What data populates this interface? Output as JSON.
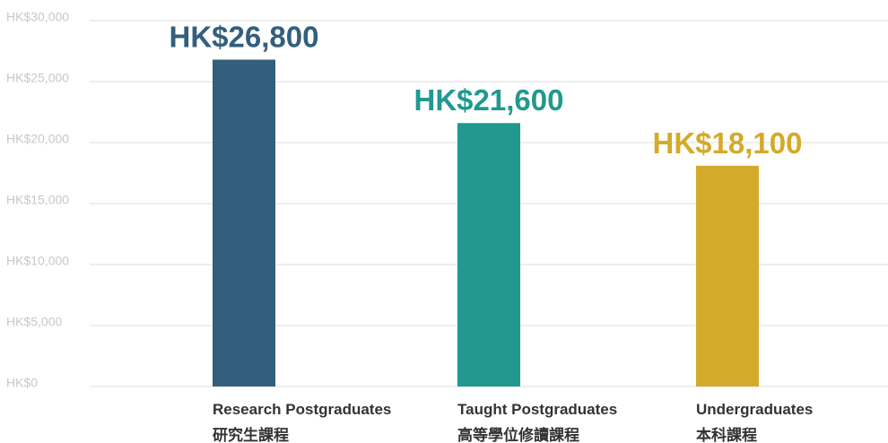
{
  "chart_data": {
    "type": "bar",
    "categories": [
      [
        "Research Postgraduates",
        "研究生課程"
      ],
      [
        "Taught Postgraduates",
        "高等學位修讀課程"
      ],
      [
        "Undergraduates",
        "本科課程"
      ]
    ],
    "values": [
      26800,
      21600,
      18100
    ],
    "value_labels": [
      "HK$26,800",
      "HK$21,600",
      "HK$18,100"
    ],
    "colors": [
      "#335f7d",
      "#21998f",
      "#d4aa2a"
    ],
    "ylim": [
      0,
      30000
    ],
    "yticks": [
      {
        "value": 0,
        "label": "HK$0"
      },
      {
        "value": 5000,
        "label": "HK$5,000"
      },
      {
        "value": 10000,
        "label": "HK$10,000"
      },
      {
        "value": 15000,
        "label": "HK$15,000"
      },
      {
        "value": 20000,
        "label": "HK$20,000"
      },
      {
        "value": 25000,
        "label": "HK$25,000"
      },
      {
        "value": 30000,
        "label": "HK$30,000"
      }
    ],
    "grid": true
  }
}
